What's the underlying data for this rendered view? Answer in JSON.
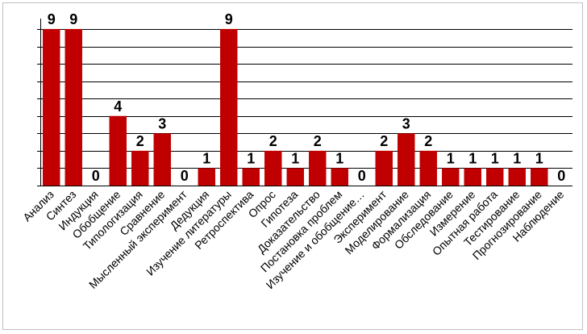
{
  "chart_data": {
    "type": "bar",
    "categories": [
      "Анализ",
      "Синтез",
      "Индукция",
      "Обобщение",
      "Типологизация",
      "Сравнение",
      "Мысленный эксперимент",
      "Дедукция",
      "Изучение литературы",
      "Ретроспектива",
      "Опрос",
      "Гипотеза",
      "Доказательство",
      "Постановка проблем",
      "Изучение и обобщение…",
      "Эксперимент",
      "Моделирование",
      "Формализация",
      "Обследование",
      "Измерение",
      "Опытная работа",
      "Тестирование",
      "Прогнозирование",
      "Наблюдение"
    ],
    "values": [
      9,
      9,
      0,
      4,
      2,
      3,
      0,
      1,
      9,
      1,
      2,
      1,
      2,
      1,
      0,
      2,
      3,
      2,
      1,
      1,
      1,
      1,
      1,
      0
    ],
    "ylim": [
      0,
      9
    ],
    "grid": true,
    "data_labels": true,
    "bar_color": "#c00000",
    "grid_color": "#000000"
  }
}
